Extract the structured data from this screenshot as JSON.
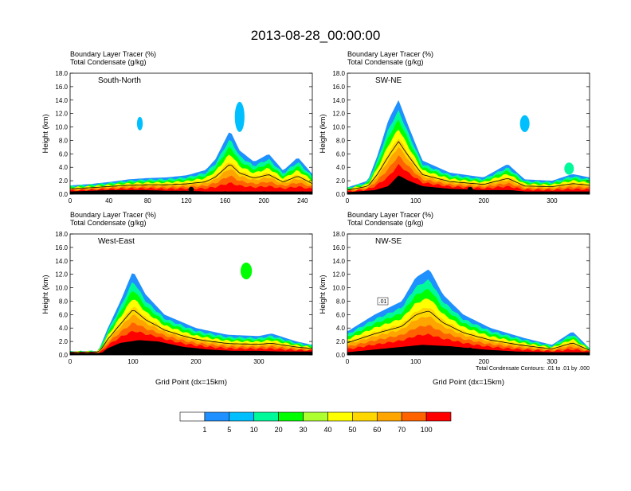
{
  "title": "2013-08-28_00:00:00",
  "colors": {
    "levels": [
      "#ffffff",
      "#1e90ff",
      "#00bfff",
      "#00fa9a",
      "#00ff00",
      "#adff2f",
      "#ffff00",
      "#ffd700",
      "#ffa500",
      "#ff6300",
      "#ff0000"
    ],
    "terrain": "#000000"
  },
  "chart_data": [
    {
      "type": "heatmap",
      "panel": "South-North",
      "subtitle1": "Boundary Layer Tracer   (%)",
      "subtitle2": "Total Condensate   (g/kg)",
      "ylabel": "Height (km)",
      "xlabel": "",
      "xlim": [
        0,
        250
      ],
      "ylim": [
        0,
        18
      ],
      "xticks": [
        "0",
        "40",
        "80",
        "120",
        "160",
        "200",
        "240"
      ],
      "yticks": [
        "0.0",
        "2.0",
        "4.0",
        "6.0",
        "8.0",
        "10.0",
        "12.0",
        "14.0",
        "16.0",
        "18.0"
      ],
      "terrain_km": [
        [
          0,
          0.4
        ],
        [
          20,
          0.5
        ],
        [
          40,
          0.6
        ],
        [
          60,
          0.6
        ],
        [
          80,
          0.6
        ],
        [
          100,
          0.5
        ],
        [
          120,
          0.5
        ],
        [
          140,
          0.4
        ],
        [
          160,
          0.4
        ],
        [
          180,
          0.4
        ],
        [
          200,
          0.4
        ],
        [
          220,
          0.4
        ],
        [
          240,
          0.4
        ],
        [
          250,
          0.4
        ]
      ],
      "pbl_top_km": [
        [
          0,
          1.3
        ],
        [
          20,
          1.5
        ],
        [
          40,
          1.8
        ],
        [
          60,
          2.2
        ],
        [
          80,
          2.4
        ],
        [
          100,
          2.5
        ],
        [
          120,
          2.8
        ],
        [
          140,
          3.6
        ],
        [
          150,
          5.2
        ],
        [
          165,
          9.5
        ],
        [
          175,
          6.5
        ],
        [
          190,
          4.8
        ],
        [
          205,
          6.0
        ],
        [
          220,
          3.5
        ],
        [
          235,
          5.5
        ],
        [
          250,
          3.0
        ]
      ],
      "tracer_blobs": [
        {
          "x": 175,
          "y": 11.5,
          "w": 10,
          "h": 4.5,
          "value": 5
        },
        {
          "x": 72,
          "y": 10.5,
          "w": 6,
          "h": 2.0,
          "value": 5
        }
      ],
      "marker_x": 125
    },
    {
      "type": "heatmap",
      "panel": "SW-NE",
      "subtitle1": "Boundary Layer Tracer   (%)",
      "subtitle2": "Total Condensate   (g/kg)",
      "ylabel": "Height (km)",
      "xlabel": "",
      "xlim": [
        0,
        355
      ],
      "ylim": [
        0,
        18
      ],
      "xticks": [
        "0",
        "100",
        "200",
        "300"
      ],
      "yticks": [
        "0.0",
        "2.0",
        "4.0",
        "6.0",
        "8.0",
        "10.0",
        "12.0",
        "14.0",
        "16.0",
        "18.0"
      ],
      "terrain_km": [
        [
          0,
          0.3
        ],
        [
          40,
          0.6
        ],
        [
          60,
          1.2
        ],
        [
          75,
          2.8
        ],
        [
          90,
          2.0
        ],
        [
          110,
          1.2
        ],
        [
          150,
          0.8
        ],
        [
          200,
          0.6
        ],
        [
          240,
          0.6
        ],
        [
          260,
          0.4
        ],
        [
          300,
          0.4
        ],
        [
          355,
          0.4
        ]
      ],
      "pbl_top_km": [
        [
          0,
          1.0
        ],
        [
          30,
          2.0
        ],
        [
          45,
          6.0
        ],
        [
          60,
          11.0
        ],
        [
          75,
          14.0
        ],
        [
          90,
          10.0
        ],
        [
          110,
          5.0
        ],
        [
          150,
          3.2
        ],
        [
          200,
          2.5
        ],
        [
          235,
          4.5
        ],
        [
          260,
          2.2
        ],
        [
          300,
          2.0
        ],
        [
          330,
          3.0
        ],
        [
          355,
          2.5
        ]
      ],
      "tracer_blobs": [
        {
          "x": 260,
          "y": 10.5,
          "w": 14,
          "h": 2.5,
          "value": 5
        },
        {
          "x": 325,
          "y": 3.8,
          "w": 14,
          "h": 1.8,
          "value": 10
        }
      ],
      "marker_x": 180
    },
    {
      "type": "heatmap",
      "panel": "West-East",
      "subtitle1": "Boundary Layer Tracer   (%)",
      "subtitle2": "Total Condensate   (g/kg)",
      "ylabel": "Height (km)",
      "xlabel": "Grid Point (dx=15km)",
      "xlim": [
        0,
        385
      ],
      "ylim": [
        0,
        18
      ],
      "xticks": [
        "0",
        "100",
        "200",
        "300"
      ],
      "yticks": [
        "0.0",
        "2.0",
        "4.0",
        "6.0",
        "8.0",
        "10.0",
        "12.0",
        "14.0",
        "16.0",
        "18.0"
      ],
      "terrain_km": [
        [
          0,
          0.3
        ],
        [
          50,
          0.3
        ],
        [
          60,
          1.0
        ],
        [
          80,
          1.8
        ],
        [
          110,
          2.2
        ],
        [
          140,
          2.0
        ],
        [
          180,
          1.2
        ],
        [
          220,
          0.8
        ],
        [
          260,
          0.6
        ],
        [
          300,
          0.6
        ],
        [
          340,
          0.5
        ],
        [
          385,
          0.5
        ]
      ],
      "pbl_top_km": [
        [
          0,
          0.5
        ],
        [
          45,
          0.6
        ],
        [
          60,
          4.0
        ],
        [
          80,
          8.0
        ],
        [
          100,
          12.5
        ],
        [
          120,
          9.0
        ],
        [
          150,
          6.0
        ],
        [
          200,
          4.0
        ],
        [
          250,
          3.0
        ],
        [
          300,
          2.8
        ],
        [
          320,
          3.2
        ],
        [
          360,
          2.0
        ],
        [
          385,
          1.5
        ]
      ],
      "tracer_blobs": [
        {
          "x": 280,
          "y": 12.5,
          "w": 18,
          "h": 2.5,
          "value": 20
        }
      ],
      "marker_x": 190
    },
    {
      "type": "heatmap",
      "panel": "NW-SE",
      "subtitle1": "Boundary Layer Tracer   (%)",
      "subtitle2": "Total Condensate   (g/kg)",
      "ylabel": "Height (km)",
      "xlabel": "Grid Point (dx=15km)",
      "note": "Total Condensate Contours: .01 to .01 by .000",
      "contour_label": ".01",
      "xlim": [
        0,
        355
      ],
      "ylim": [
        0,
        18
      ],
      "xticks": [
        "0",
        "100",
        "200",
        "300"
      ],
      "yticks": [
        "0.0",
        "2.0",
        "4.0",
        "6.0",
        "8.0",
        "10.0",
        "12.0",
        "14.0",
        "16.0",
        "18.0"
      ],
      "terrain_km": [
        [
          0,
          0.4
        ],
        [
          40,
          0.8
        ],
        [
          80,
          1.2
        ],
        [
          110,
          1.5
        ],
        [
          150,
          1.3
        ],
        [
          200,
          0.8
        ],
        [
          250,
          0.5
        ],
        [
          300,
          0.4
        ],
        [
          355,
          0.4
        ]
      ],
      "pbl_top_km": [
        [
          0,
          3.5
        ],
        [
          40,
          6.0
        ],
        [
          80,
          8.0
        ],
        [
          100,
          11.5
        ],
        [
          120,
          12.8
        ],
        [
          140,
          9.0
        ],
        [
          170,
          6.0
        ],
        [
          210,
          4.0
        ],
        [
          260,
          2.5
        ],
        [
          300,
          1.5
        ],
        [
          330,
          3.5
        ],
        [
          355,
          1.0
        ]
      ],
      "tracer_blobs": [],
      "marker_x": 180
    }
  ],
  "colorbar": {
    "labels": [
      "1",
      "5",
      "10",
      "20",
      "30",
      "40",
      "50",
      "60",
      "70",
      "100"
    ]
  }
}
